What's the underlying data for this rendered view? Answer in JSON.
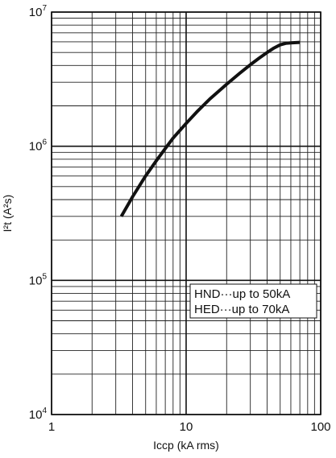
{
  "chart_data": {
    "type": "line",
    "xlabel": "Iccp (kA rms)",
    "ylabel": "I²t (A²s)",
    "x_scale": "log",
    "y_scale": "log",
    "xlim": [
      1,
      100
    ],
    "ylim": [
      10000,
      10000000
    ],
    "grid": true,
    "x_ticks": [
      {
        "value": 1,
        "label": "1"
      },
      {
        "value": 10,
        "label": "10"
      },
      {
        "value": 100,
        "label": "100"
      }
    ],
    "y_ticks": [
      {
        "value": 10000,
        "base": "10",
        "exp": "4"
      },
      {
        "value": 100000,
        "base": "10",
        "exp": "5"
      },
      {
        "value": 1000000,
        "base": "10",
        "exp": "6"
      },
      {
        "value": 10000000,
        "base": "10",
        "exp": "7"
      }
    ],
    "series": [
      {
        "color": "#111111",
        "x": [
          3.3,
          4,
          5,
          6,
          7,
          8,
          10,
          12,
          15,
          20,
          25,
          30,
          35,
          40,
          45,
          50,
          55,
          60,
          70
        ],
        "y": [
          300000,
          420000,
          600000,
          780000,
          960000,
          1150000,
          1480000,
          1800000,
          2250000,
          2900000,
          3500000,
          4050000,
          4550000,
          5000000,
          5400000,
          5700000,
          5850000,
          5900000,
          5950000
        ]
      }
    ],
    "annotations": [
      {
        "text": "HND···up to 50kA"
      },
      {
        "text": "HED···up to 70kA"
      }
    ]
  }
}
